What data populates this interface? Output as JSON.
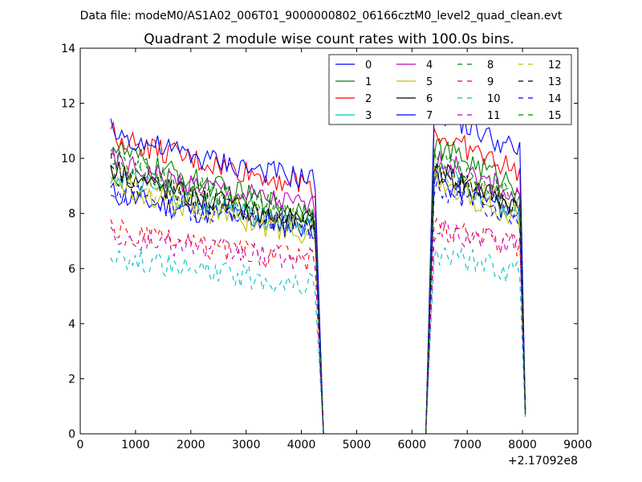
{
  "suptitle": "Data file: modeM0/AS1A02_006T01_9000000802_06166cztM0_level2_quad_clean.evt",
  "chart_data": {
    "type": "line",
    "title": "Quadrant 2 module wise count rates with 100.0s bins.",
    "xlabel": "",
    "ylabel": "",
    "x_offset_label": "+2.17092e8",
    "xlim": [
      0,
      9000
    ],
    "ylim": [
      0,
      14
    ],
    "xticks": [
      0,
      1000,
      2000,
      3000,
      4000,
      5000,
      6000,
      7000,
      8000,
      9000
    ],
    "yticks": [
      0,
      2,
      4,
      6,
      8,
      10,
      12,
      14
    ],
    "grid": false,
    "legend_position": "top-right",
    "legend_columns": 4,
    "segments": [
      {
        "x_start": 550,
        "x_end": 4250,
        "drop_to": 4400
      },
      {
        "x_start": 6400,
        "x_end": 7950,
        "rise_from": 6250,
        "drop_to": 8050
      }
    ],
    "series": [
      {
        "name": "0",
        "color": "#0000ff",
        "dash": "solid",
        "s1_start": 8.8,
        "s1_end": 7.5,
        "s2_start": 9.2,
        "s2_end": 8.0,
        "end_value": 0.8
      },
      {
        "name": "1",
        "color": "#008000",
        "dash": "solid",
        "s1_start": 10.6,
        "s1_end": 8.0,
        "s2_start": 10.5,
        "s2_end": 9.0,
        "end_value": 0.8
      },
      {
        "name": "2",
        "color": "#ff0000",
        "dash": "solid",
        "s1_start": 11.0,
        "s1_end": 9.0,
        "s2_start": 10.9,
        "s2_end": 9.5,
        "end_value": 0.8
      },
      {
        "name": "3",
        "color": "#00bfbf",
        "dash": "solid",
        "s1_start": 9.5,
        "s1_end": 7.5,
        "s2_start": 9.6,
        "s2_end": 8.0,
        "end_value": 0.8
      },
      {
        "name": "4",
        "color": "#bf00bf",
        "dash": "solid",
        "s1_start": 10.0,
        "s1_end": 8.2,
        "s2_start": 10.0,
        "s2_end": 8.6,
        "end_value": 0.7
      },
      {
        "name": "5",
        "color": "#bfbf00",
        "dash": "solid",
        "s1_start": 9.4,
        "s1_end": 7.2,
        "s2_start": 9.2,
        "s2_end": 7.8,
        "end_value": 0.7
      },
      {
        "name": "6",
        "color": "#000000",
        "dash": "solid",
        "s1_start": 9.8,
        "s1_end": 7.6,
        "s2_start": 9.7,
        "s2_end": 8.2,
        "end_value": 0.8
      },
      {
        "name": "7",
        "color": "#0000ff",
        "dash": "solid",
        "s1_start": 11.1,
        "s1_end": 9.2,
        "s2_start": 11.8,
        "s2_end": 10.2,
        "end_value": 0.9
      },
      {
        "name": "8",
        "color": "#008000",
        "dash": "dashed",
        "s1_start": 10.3,
        "s1_end": 7.8,
        "s2_start": 10.0,
        "s2_end": 8.4,
        "end_value": 0.8
      },
      {
        "name": "9",
        "color": "#ff0000",
        "dash": "dashed",
        "s1_start": 7.5,
        "s1_end": 6.3,
        "s2_start": 7.5,
        "s2_end": 6.8,
        "end_value": 0.7
      },
      {
        "name": "10",
        "color": "#00bfbf",
        "dash": "dashed",
        "s1_start": 6.6,
        "s1_end": 5.4,
        "s2_start": 6.6,
        "s2_end": 5.8,
        "end_value": 0.6
      },
      {
        "name": "11",
        "color": "#bf00bf",
        "dash": "dashed",
        "s1_start": 7.3,
        "s1_end": 6.3,
        "s2_start": 7.4,
        "s2_end": 6.8,
        "end_value": 0.7
      },
      {
        "name": "12",
        "color": "#bfbf00",
        "dash": "dashed",
        "s1_start": 9.6,
        "s1_end": 7.6,
        "s2_start": 9.6,
        "s2_end": 8.2,
        "end_value": 0.7
      },
      {
        "name": "13",
        "color": "#000000",
        "dash": "dashed",
        "s1_start": 9.6,
        "s1_end": 7.6,
        "s2_start": 9.5,
        "s2_end": 8.2,
        "end_value": 0.8
      },
      {
        "name": "14",
        "color": "#0000ff",
        "dash": "dashed",
        "s1_start": 9.0,
        "s1_end": 7.4,
        "s2_start": 9.0,
        "s2_end": 7.8,
        "end_value": 0.7
      },
      {
        "name": "15",
        "color": "#008000",
        "dash": "dashed",
        "s1_start": 10.1,
        "s1_end": 7.9,
        "s2_start": 10.0,
        "s2_end": 8.6,
        "end_value": 0.8
      }
    ]
  }
}
